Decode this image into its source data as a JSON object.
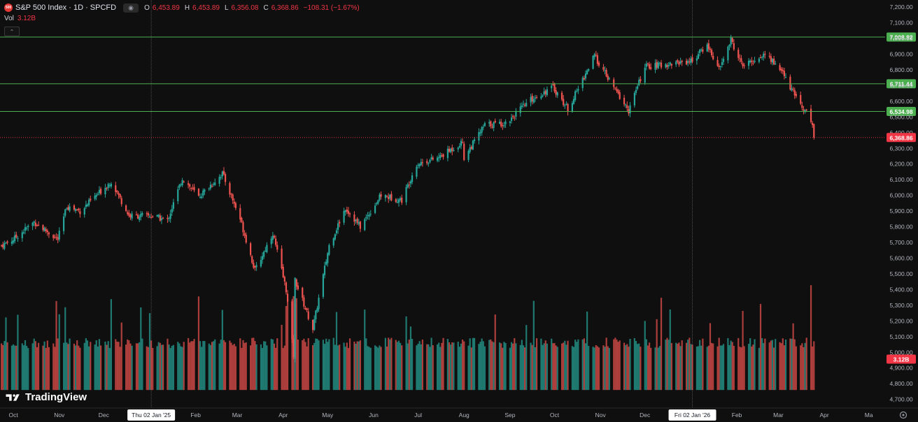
{
  "header": {
    "logo_text": "500",
    "symbol": "S&P 500 Index · 1D · SPCFD",
    "eye_icon": "eye-icon",
    "open_label": "O",
    "open_value": "6,453.89",
    "high_label": "H",
    "high_value": "6,453.89",
    "low_label": "L",
    "low_value": "6,356.08",
    "close_label": "C",
    "close_value": "6,368.86",
    "change_value": "−108.31 (−1.67%)"
  },
  "volume_legend": {
    "label": "Vol",
    "value": "3.12B"
  },
  "collapse_icon": "chevron-up-icon",
  "watermark": "TradingView",
  "colors": {
    "up": "#26a69a",
    "down": "#ef5350",
    "hline": "#4caf50",
    "last": "#f23645",
    "background": "#0f0f0f"
  },
  "chart_data": {
    "type": "candlestick",
    "y_axis": {
      "ticks": [
        "7,200.00",
        "7,100.00",
        "7,000.00",
        "6,900.00",
        "6,800.00",
        "6,700.00",
        "6,600.00",
        "6,500.00",
        "6,400.00",
        "6,300.00",
        "6,200.00",
        "6,100.00",
        "6,000.00",
        "5,900.00",
        "5,800.00",
        "5,700.00",
        "5,600.00",
        "5,500.00",
        "5,400.00",
        "5,300.00",
        "5,200.00",
        "5,100.00",
        "5,000.00",
        "4,900.00",
        "4,800.00",
        "4,700.00"
      ],
      "tick_values": [
        7200,
        7100,
        7000,
        6900,
        6800,
        6700,
        6600,
        6500,
        6400,
        6300,
        6200,
        6100,
        6000,
        5900,
        5800,
        5700,
        5600,
        5500,
        5400,
        5300,
        5200,
        5100,
        5000,
        4900,
        4800,
        4700
      ],
      "range": [
        4645,
        7245
      ]
    },
    "x_axis": {
      "labels": [
        "Oct",
        "Nov",
        "Dec",
        "Thu 02 Jan '25",
        "Feb",
        "Mar",
        "Apr",
        "May",
        "Jun",
        "Jul",
        "Aug",
        "Sep",
        "Oct",
        "Nov",
        "Dec",
        "Fri 02 Jan '26",
        "Feb",
        "Mar",
        "Apr",
        "Ma"
      ],
      "label_dates": [
        "2024-10-01",
        "2024-11-01",
        "2024-12-01",
        "2025-01-02",
        "2025-02-01",
        "2025-03-01",
        "2025-04-01",
        "2025-05-01",
        "2025-06-01",
        "2025-07-01",
        "2025-08-01",
        "2025-09-01",
        "2025-10-01",
        "2025-11-01",
        "2025-12-01",
        "2026-01-02",
        "2026-02-01",
        "2026-03-01",
        "2026-04-01",
        "2026-05-01"
      ],
      "highlighted": [
        "Thu 02 Jan '25",
        "Fri 02 Jan '26"
      ],
      "range": [
        "2024-09-22",
        "2026-05-12"
      ]
    },
    "vertical_lines": [
      "2025-01-02",
      "2026-01-02"
    ],
    "horizontal_lines": [
      {
        "value": 7008.82,
        "label": "7,008.82"
      },
      {
        "value": 6711.44,
        "label": "6,711.44"
      },
      {
        "value": 6534.98,
        "label": "6,534.98"
      }
    ],
    "last_price": {
      "value": 6368.86,
      "label": "6,368.86"
    },
    "volume_badge": "3.12B",
    "close_path": [
      [
        "2024-09-23",
        5680
      ],
      [
        "2024-10-01",
        5720
      ],
      [
        "2024-10-15",
        5830
      ],
      [
        "2024-10-31",
        5720
      ],
      [
        "2024-11-06",
        5930
      ],
      [
        "2024-11-15",
        5900
      ],
      [
        "2024-12-06",
        6090
      ],
      [
        "2024-12-18",
        5870
      ],
      [
        "2025-01-02",
        5870
      ],
      [
        "2025-01-13",
        5840
      ],
      [
        "2025-01-23",
        6110
      ],
      [
        "2025-02-03",
        5990
      ],
      [
        "2025-02-19",
        6140
      ],
      [
        "2025-03-03",
        5850
      ],
      [
        "2025-03-13",
        5520
      ],
      [
        "2025-03-25",
        5760
      ],
      [
        "2025-04-03",
        5400
      ],
      [
        "2025-04-08",
        4980
      ],
      [
        "2025-04-09",
        5460
      ],
      [
        "2025-04-21",
        5150
      ],
      [
        "2025-05-02",
        5680
      ],
      [
        "2025-05-13",
        5920
      ],
      [
        "2025-05-23",
        5800
      ],
      [
        "2025-06-06",
        6000
      ],
      [
        "2025-06-20",
        5970
      ],
      [
        "2025-06-30",
        6200
      ],
      [
        "2025-07-15",
        6240
      ],
      [
        "2025-07-31",
        6340
      ],
      [
        "2025-08-01",
        6240
      ],
      [
        "2025-08-15",
        6450
      ],
      [
        "2025-08-29",
        6460
      ],
      [
        "2025-09-15",
        6610
      ],
      [
        "2025-09-30",
        6690
      ],
      [
        "2025-10-10",
        6550
      ],
      [
        "2025-10-28",
        6890
      ],
      [
        "2025-11-07",
        6730
      ],
      [
        "2025-11-20",
        6540
      ],
      [
        "2025-12-01",
        6820
      ],
      [
        "2025-12-12",
        6830
      ],
      [
        "2026-01-02",
        6860
      ],
      [
        "2026-01-12",
        6960
      ],
      [
        "2026-01-20",
        6800
      ],
      [
        "2026-01-28",
        6990
      ],
      [
        "2026-02-05",
        6820
      ],
      [
        "2026-02-20",
        6900
      ],
      [
        "2026-03-02",
        6810
      ],
      [
        "2026-03-12",
        6640
      ],
      [
        "2026-03-20",
        6530
      ],
      [
        "2026-03-24",
        6454
      ],
      [
        "2026-03-25",
        6369
      ]
    ]
  }
}
